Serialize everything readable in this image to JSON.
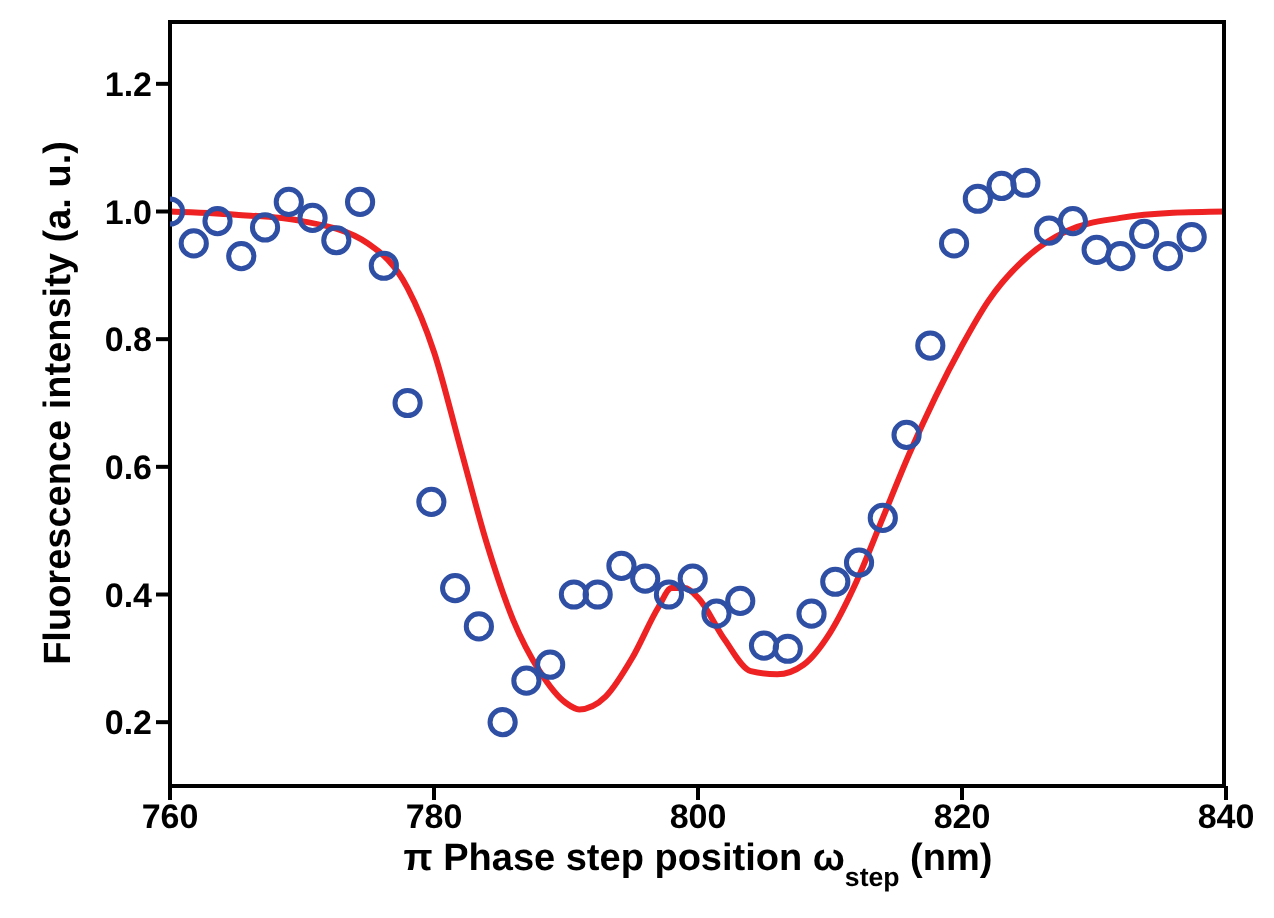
{
  "chart_data": {
    "type": "scatter",
    "xlabel": "π Phase step position ω$_{step}$ (nm)",
    "ylabel": "Fluorescence intensity (a. u.)",
    "xlim": [
      760,
      840
    ],
    "xticks": [
      760,
      780,
      800,
      820,
      840
    ],
    "ylim": [
      0.1,
      1.3
    ],
    "yticks": [
      {
        "value": 0.2,
        "label": "0.2"
      },
      {
        "value": 0.4,
        "label": "0.4"
      },
      {
        "value": 0.6,
        "label": "0.6"
      },
      {
        "value": 0.8,
        "label": "0.8"
      },
      {
        "value": 1.0,
        "label": "1.0"
      },
      {
        "value": 1.2,
        "label": "1.2"
      }
    ],
    "grid": false,
    "legend": false,
    "series": [
      {
        "type": "scatter",
        "color": "#2e4fa3",
        "marker": "circle",
        "x": [
          760,
          761.8,
          763.6,
          765.4,
          767.2,
          769,
          770.8,
          772.6,
          774.4,
          776.2,
          778,
          779.8,
          781.6,
          783.4,
          785.2,
          787,
          788.8,
          790.6,
          792.4,
          794.2,
          796,
          797.8,
          799.6,
          801.4,
          803.2,
          805,
          806.8,
          808.6,
          810.4,
          812.2,
          814,
          815.8,
          817.6,
          819.4,
          821.2,
          823,
          824.8,
          826.6,
          828.4,
          830.2,
          832,
          833.8,
          835.6,
          837.4
        ],
        "values": [
          1.0,
          0.95,
          0.985,
          0.93,
          0.975,
          1.015,
          0.99,
          0.955,
          1.015,
          0.915,
          0.7,
          0.545,
          0.41,
          0.35,
          0.2,
          0.265,
          0.29,
          0.4,
          0.4,
          0.445,
          0.425,
          0.4,
          0.425,
          0.37,
          0.39,
          0.32,
          0.315,
          0.37,
          0.42,
          0.45,
          0.52,
          0.65,
          0.79,
          0.95,
          1.02,
          1.04,
          1.045,
          0.97,
          0.985,
          0.94,
          0.93,
          0.965,
          0.93,
          0.96
        ]
      },
      {
        "type": "line",
        "color": "#ee2222",
        "marker": "none",
        "x": [
          760,
          765,
          770,
          775,
          778,
          780,
          782,
          784,
          786,
          788,
          790,
          791,
          793,
          795,
          797,
          798,
          799,
          800,
          802,
          804,
          806,
          808,
          810,
          812,
          814,
          816,
          818,
          820,
          822,
          825,
          828,
          832,
          836,
          840
        ],
        "values": [
          1.0,
          0.995,
          0.985,
          0.95,
          0.88,
          0.78,
          0.63,
          0.48,
          0.36,
          0.28,
          0.23,
          0.22,
          0.24,
          0.3,
          0.38,
          0.41,
          0.41,
          0.395,
          0.33,
          0.28,
          0.275,
          0.29,
          0.34,
          0.42,
          0.52,
          0.62,
          0.71,
          0.79,
          0.86,
          0.93,
          0.97,
          0.99,
          0.998,
          1.0
        ]
      }
    ]
  }
}
